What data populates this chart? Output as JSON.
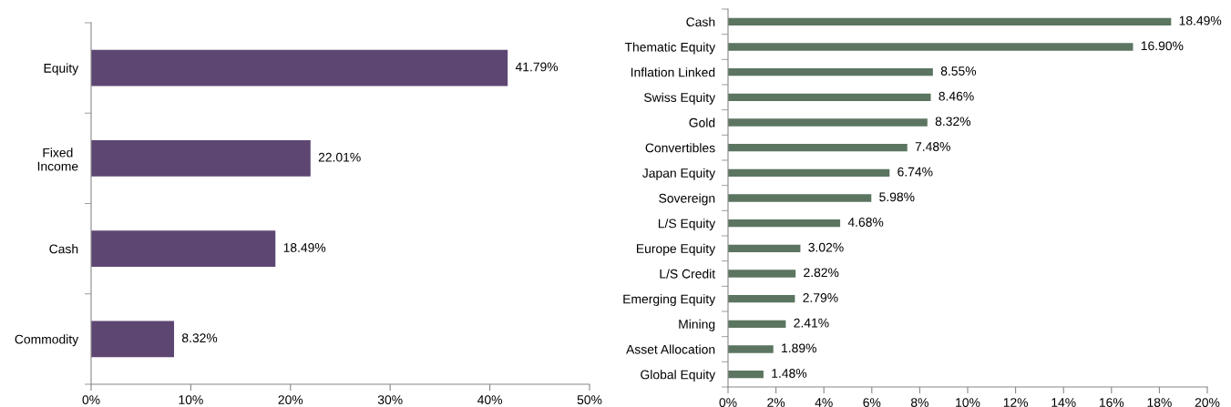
{
  "chart_data": [
    {
      "type": "bar",
      "orientation": "horizontal",
      "categories": [
        "Equity",
        "Fixed\nIncome",
        "Cash",
        "Commodity"
      ],
      "values": [
        41.79,
        22.01,
        18.49,
        8.32
      ],
      "color": "#5e4673",
      "value_labels": [
        "41.79%",
        "22.01%",
        "18.49%",
        "8.32%"
      ],
      "xlim": [
        0,
        50
      ],
      "xticks": [
        {
          "value": 0,
          "label": "0%"
        },
        {
          "value": 10,
          "label": "10%"
        },
        {
          "value": 20,
          "label": "20%"
        },
        {
          "value": 30,
          "label": "30%"
        },
        {
          "value": 40,
          "label": "40%"
        },
        {
          "value": 50,
          "label": "50%"
        }
      ],
      "grid": false,
      "legend": false
    },
    {
      "type": "bar",
      "orientation": "horizontal",
      "categories": [
        "Cash",
        "Thematic Equity",
        "Inflation Linked",
        "Swiss Equity",
        "Gold",
        "Convertibles",
        "Japan Equity",
        "Sovereign",
        "L/S Equity",
        "Europe Equity",
        "L/S Credit",
        "Emerging Equity",
        "Mining",
        "Asset Allocation",
        "Global Equity"
      ],
      "values": [
        18.49,
        16.9,
        8.55,
        8.46,
        8.32,
        7.48,
        6.74,
        5.98,
        4.68,
        3.02,
        2.82,
        2.79,
        2.41,
        1.89,
        1.48
      ],
      "color": "#5b7561",
      "value_labels": [
        "18.49%",
        "16.90%",
        "8.55%",
        "8.46%",
        "8.32%",
        "7.48%",
        "6.74%",
        "5.98%",
        "4.68%",
        "3.02%",
        "2.82%",
        "2.79%",
        "2.41%",
        "1.89%",
        "1.48%"
      ],
      "xlim": [
        0,
        20
      ],
      "xticks": [
        {
          "value": 0,
          "label": "0%"
        },
        {
          "value": 2,
          "label": "2%"
        },
        {
          "value": 4,
          "label": "4%"
        },
        {
          "value": 6,
          "label": "6%"
        },
        {
          "value": 8,
          "label": "8%"
        },
        {
          "value": 10,
          "label": "10%"
        },
        {
          "value": 12,
          "label": "12%"
        },
        {
          "value": 14,
          "label": "14%"
        },
        {
          "value": 16,
          "label": "16%"
        },
        {
          "value": 18,
          "label": "18%"
        },
        {
          "value": 20,
          "label": "20%"
        }
      ],
      "grid": false,
      "legend": false
    }
  ]
}
